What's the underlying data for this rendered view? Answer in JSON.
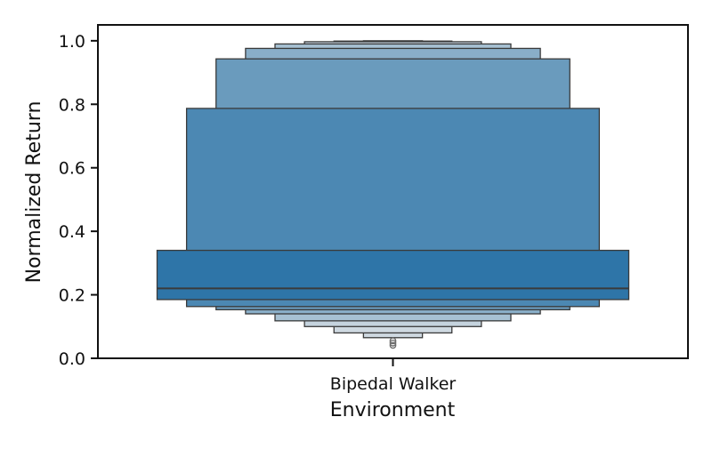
{
  "chart_data": {
    "type": "boxen",
    "xlabel": "Environment",
    "ylabel": "Normalized Return",
    "categories": [
      "Bipedal Walker"
    ],
    "ylim": [
      0.0,
      1.05
    ],
    "yticks": [
      "0.0",
      "0.2",
      "0.4",
      "0.6",
      "0.8",
      "1.0"
    ],
    "grid": false,
    "color": "#2e75a8",
    "median": 0.22,
    "boxes": [
      {
        "lower": 0.185,
        "upper": 0.34
      },
      {
        "lower": 0.163,
        "upper": 0.787
      },
      {
        "lower": 0.153,
        "upper": 0.943
      },
      {
        "lower": 0.14,
        "upper": 0.976
      },
      {
        "lower": 0.118,
        "upper": 0.99
      },
      {
        "lower": 0.1,
        "upper": 0.997
      },
      {
        "lower": 0.08,
        "upper": 0.999
      },
      {
        "lower": 0.065,
        "upper": 1.0
      }
    ],
    "outliers": [
      0.041,
      0.048,
      0.055
    ]
  }
}
